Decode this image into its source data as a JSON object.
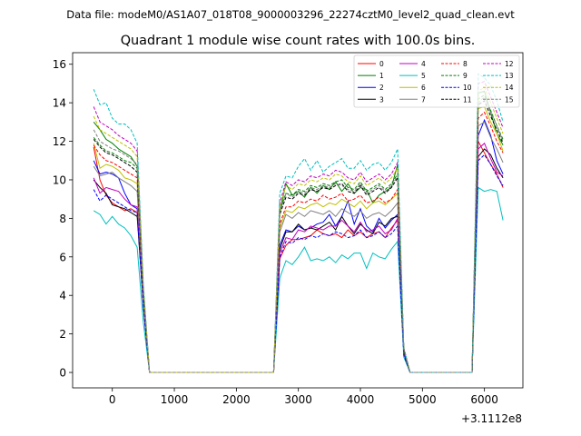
{
  "chart_data": {
    "type": "line",
    "suptitle": "Data file: modeM0/AS1A07_018T08_9000003296_22274cztM0_level2_quad_clean.evt",
    "title": "Quadrant 1 module wise count rates with 100.0s bins.",
    "xlabel": "",
    "ylabel": "",
    "x_offset_label": "+3.1112e8",
    "xlim": [
      -640,
      6620
    ],
    "ylim": [
      -0.8,
      16.6
    ],
    "xticks": [
      0,
      1000,
      2000,
      3000,
      4000,
      5000,
      6000
    ],
    "yticks": [
      0,
      2,
      4,
      6,
      8,
      10,
      12,
      14,
      16
    ],
    "x": [
      -300,
      -200,
      -100,
      0,
      100,
      200,
      300,
      400,
      500,
      600,
      700,
      800,
      900,
      1000,
      1100,
      1200,
      1300,
      1400,
      1500,
      1600,
      1700,
      1800,
      1900,
      2000,
      2100,
      2200,
      2300,
      2400,
      2500,
      2600,
      2700,
      2800,
      2900,
      3000,
      3100,
      3200,
      3300,
      3400,
      3500,
      3600,
      3700,
      3800,
      3900,
      4000,
      4100,
      4200,
      4300,
      4400,
      4500,
      4600,
      4700,
      4800,
      4900,
      5000,
      5100,
      5200,
      5300,
      5400,
      5500,
      5600,
      5700,
      5800,
      5900,
      6000,
      6100,
      6200,
      6300
    ],
    "legend": {
      "position": "top-right",
      "ncol": 4
    },
    "series": [
      {
        "name": "0",
        "color": "#ff0000",
        "dash": false,
        "values": [
          11.7,
          10.0,
          9.2,
          8.8,
          8.6,
          8.4,
          8.5,
          8.3,
          3.5,
          0,
          0,
          0,
          0,
          0,
          0,
          0,
          0,
          0,
          0,
          0,
          0,
          0,
          0,
          0,
          0,
          0,
          0,
          0,
          0,
          0,
          5.9,
          6.6,
          6.9,
          6.9,
          7.0,
          7.1,
          7.4,
          7.2,
          7.1,
          7.2,
          7.0,
          7.4,
          7.1,
          7.3,
          7.0,
          7.2,
          7.3,
          7.0,
          7.5,
          7.9,
          1.0,
          0,
          0,
          0,
          0,
          0,
          0,
          0,
          0,
          0,
          0,
          0,
          12.0,
          11.4,
          10.8,
          10.3,
          9.6
        ]
      },
      {
        "name": "1",
        "color": "#008000",
        "dash": false,
        "values": [
          13.0,
          12.6,
          12.1,
          11.9,
          11.6,
          11.4,
          11.2,
          10.7,
          4.2,
          0,
          0,
          0,
          0,
          0,
          0,
          0,
          0,
          0,
          0,
          0,
          0,
          0,
          0,
          0,
          0,
          0,
          0,
          0,
          0,
          0,
          8.3,
          9.8,
          9.2,
          9.4,
          9.1,
          9.6,
          9.3,
          9.7,
          9.5,
          9.9,
          9.4,
          9.8,
          9.3,
          9.6,
          9.5,
          8.8,
          9.2,
          9.4,
          9.6,
          10.8,
          1.2,
          0,
          0,
          0,
          0,
          0,
          0,
          0,
          0,
          0,
          0,
          0,
          14.5,
          14.6,
          13.5,
          12.4,
          11.8
        ]
      },
      {
        "name": "2",
        "color": "#0000ff",
        "dash": false,
        "values": [
          11.0,
          10.3,
          10.4,
          10.3,
          10.1,
          9.3,
          8.7,
          8.5,
          3.6,
          0,
          0,
          0,
          0,
          0,
          0,
          0,
          0,
          0,
          0,
          0,
          0,
          0,
          0,
          0,
          0,
          0,
          0,
          0,
          0,
          0,
          6.6,
          7.4,
          7.3,
          7.6,
          7.4,
          7.5,
          7.7,
          7.8,
          8.2,
          7.6,
          8.1,
          8.9,
          7.7,
          8.5,
          7.6,
          7.3,
          8.0,
          7.5,
          7.9,
          8.2,
          1.0,
          0,
          0,
          0,
          0,
          0,
          0,
          0,
          0,
          0,
          0,
          0,
          12.3,
          13.1,
          12.3,
          11.0,
          10.3
        ]
      },
      {
        "name": "3",
        "color": "#000000",
        "dash": false,
        "values": [
          10.0,
          9.6,
          9.3,
          8.7,
          8.6,
          8.5,
          8.3,
          8.1,
          3.5,
          0,
          0,
          0,
          0,
          0,
          0,
          0,
          0,
          0,
          0,
          0,
          0,
          0,
          0,
          0,
          0,
          0,
          0,
          0,
          0,
          0,
          6.4,
          7.3,
          7.3,
          7.7,
          7.4,
          7.5,
          7.4,
          7.6,
          7.8,
          7.4,
          8.1,
          7.6,
          7.2,
          7.7,
          7.4,
          7.2,
          7.8,
          7.6,
          8.0,
          8.1,
          1.0,
          0,
          0,
          0,
          0,
          0,
          0,
          0,
          0,
          0,
          0,
          0,
          11.2,
          11.6,
          11.3,
          10.6,
          10.1
        ]
      },
      {
        "name": "4",
        "color": "#c000c0",
        "dash": false,
        "values": [
          10.1,
          9.3,
          9.6,
          9.5,
          9.4,
          9.0,
          8.7,
          8.6,
          3.6,
          0,
          0,
          0,
          0,
          0,
          0,
          0,
          0,
          0,
          0,
          0,
          0,
          0,
          0,
          0,
          0,
          0,
          0,
          0,
          0,
          0,
          6.2,
          7.0,
          6.9,
          7.4,
          7.3,
          7.6,
          7.5,
          7.4,
          7.6,
          7.6,
          7.9,
          7.6,
          7.3,
          7.8,
          7.3,
          7.4,
          7.6,
          7.2,
          7.4,
          8.0,
          1.0,
          0,
          0,
          0,
          0,
          0,
          0,
          0,
          0,
          0,
          0,
          0,
          11.6,
          11.9,
          11.1,
          10.4,
          10.2
        ]
      },
      {
        "name": "5",
        "color": "#00bfbf",
        "dash": false,
        "values": [
          8.4,
          8.2,
          7.7,
          8.1,
          7.7,
          7.5,
          7.1,
          6.5,
          2.6,
          0,
          0,
          0,
          0,
          0,
          0,
          0,
          0,
          0,
          0,
          0,
          0,
          0,
          0,
          0,
          0,
          0,
          0,
          0,
          0,
          0,
          4.9,
          5.8,
          5.6,
          6.0,
          6.5,
          5.8,
          5.9,
          5.8,
          6.0,
          5.7,
          6.1,
          5.9,
          6.2,
          6.2,
          5.4,
          6.2,
          6.0,
          5.9,
          6.4,
          6.8,
          0.8,
          0,
          0,
          0,
          0,
          0,
          0,
          0,
          0,
          0,
          0,
          0,
          9.6,
          9.4,
          9.5,
          9.4,
          7.9
        ]
      },
      {
        "name": "6",
        "color": "#bfbf00",
        "dash": false,
        "values": [
          11.9,
          10.6,
          10.8,
          10.7,
          10.5,
          10.1,
          10.0,
          9.8,
          3.8,
          0,
          0,
          0,
          0,
          0,
          0,
          0,
          0,
          0,
          0,
          0,
          0,
          0,
          0,
          0,
          0,
          0,
          0,
          0,
          0,
          0,
          7.5,
          8.4,
          8.3,
          8.6,
          8.5,
          8.7,
          8.8,
          8.6,
          8.8,
          8.7,
          9.0,
          8.8,
          8.6,
          8.9,
          8.5,
          8.8,
          8.9,
          8.7,
          9.0,
          9.3,
          1.1,
          0,
          0,
          0,
          0,
          0,
          0,
          0,
          0,
          0,
          0,
          0,
          13.7,
          13.8,
          13.0,
          12.4,
          11.5
        ]
      },
      {
        "name": "7",
        "color": "#808080",
        "dash": false,
        "values": [
          10.7,
          10.2,
          10.3,
          10.4,
          10.1,
          9.9,
          9.7,
          9.4,
          3.7,
          0,
          0,
          0,
          0,
          0,
          0,
          0,
          0,
          0,
          0,
          0,
          0,
          0,
          0,
          0,
          0,
          0,
          0,
          0,
          0,
          0,
          7.3,
          8.2,
          8.0,
          8.3,
          8.1,
          8.4,
          8.3,
          8.2,
          8.4,
          8.1,
          8.5,
          8.3,
          8.1,
          8.4,
          8.0,
          8.2,
          8.3,
          8.1,
          8.4,
          8.8,
          1.0,
          0,
          0,
          0,
          0,
          0,
          0,
          0,
          0,
          0,
          0,
          0,
          12.8,
          13.0,
          12.2,
          11.6,
          10.9
        ]
      },
      {
        "name": "8",
        "color": "#ff0000",
        "dash": true,
        "values": [
          11.8,
          11.3,
          11.0,
          10.9,
          10.7,
          10.5,
          10.3,
          10.1,
          3.9,
          0,
          0,
          0,
          0,
          0,
          0,
          0,
          0,
          0,
          0,
          0,
          0,
          0,
          0,
          0,
          0,
          0,
          0,
          0,
          0,
          0,
          7.7,
          8.6,
          8.6,
          8.9,
          8.8,
          9.0,
          8.9,
          9.2,
          9.0,
          9.1,
          9.3,
          8.9,
          9.0,
          9.2,
          8.8,
          8.9,
          9.1,
          8.8,
          9.0,
          9.5,
          1.1,
          0,
          0,
          0,
          0,
          0,
          0,
          0,
          0,
          0,
          0,
          0,
          13.2,
          13.5,
          12.8,
          12.0,
          11.4
        ]
      },
      {
        "name": "9",
        "color": "#008000",
        "dash": true,
        "values": [
          12.2,
          11.8,
          11.5,
          11.4,
          11.2,
          11.0,
          10.9,
          10.6,
          4.1,
          0,
          0,
          0,
          0,
          0,
          0,
          0,
          0,
          0,
          0,
          0,
          0,
          0,
          0,
          0,
          0,
          0,
          0,
          0,
          0,
          0,
          8.4,
          9.3,
          9.2,
          9.5,
          9.4,
          9.7,
          9.6,
          9.8,
          9.7,
          9.9,
          10.0,
          9.6,
          9.5,
          9.9,
          9.4,
          9.6,
          9.8,
          9.5,
          9.8,
          10.3,
          1.2,
          0,
          0,
          0,
          0,
          0,
          0,
          0,
          0,
          0,
          0,
          0,
          14.2,
          14.4,
          13.6,
          12.8,
          12.1
        ]
      },
      {
        "name": "10",
        "color": "#0000ff",
        "dash": true,
        "values": [
          9.5,
          8.9,
          9.2,
          9.0,
          8.8,
          8.6,
          8.4,
          8.3,
          3.4,
          0,
          0,
          0,
          0,
          0,
          0,
          0,
          0,
          0,
          0,
          0,
          0,
          0,
          0,
          0,
          0,
          0,
          0,
          0,
          0,
          0,
          6.0,
          6.8,
          6.7,
          7.0,
          6.9,
          7.1,
          7.0,
          7.2,
          7.1,
          7.3,
          7.2,
          7.0,
          7.1,
          7.4,
          7.0,
          7.1,
          7.3,
          7.0,
          7.2,
          7.6,
          0.9,
          0,
          0,
          0,
          0,
          0,
          0,
          0,
          0,
          0,
          0,
          0,
          11.0,
          11.3,
          10.8,
          10.2,
          9.7
        ]
      },
      {
        "name": "11",
        "color": "#000000",
        "dash": true,
        "values": [
          12.1,
          11.7,
          11.4,
          11.3,
          11.1,
          10.9,
          10.7,
          10.4,
          4.0,
          0,
          0,
          0,
          0,
          0,
          0,
          0,
          0,
          0,
          0,
          0,
          0,
          0,
          0,
          0,
          0,
          0,
          0,
          0,
          0,
          0,
          8.2,
          9.1,
          9.0,
          9.3,
          9.2,
          9.5,
          9.4,
          9.6,
          9.5,
          9.7,
          9.8,
          9.4,
          9.3,
          9.7,
          9.2,
          9.4,
          9.6,
          9.3,
          9.6,
          10.1,
          1.1,
          0,
          0,
          0,
          0,
          0,
          0,
          0,
          0,
          0,
          0,
          0,
          13.9,
          14.1,
          13.3,
          12.6,
          11.9
        ]
      },
      {
        "name": "12",
        "color": "#c000c0",
        "dash": true,
        "values": [
          13.8,
          13.0,
          12.8,
          12.6,
          12.3,
          12.1,
          11.9,
          11.5,
          4.4,
          0,
          0,
          0,
          0,
          0,
          0,
          0,
          0,
          0,
          0,
          0,
          0,
          0,
          0,
          0,
          0,
          0,
          0,
          0,
          0,
          0,
          8.8,
          9.9,
          9.7,
          10.0,
          9.9,
          10.2,
          10.1,
          10.3,
          10.2,
          10.5,
          10.4,
          10.1,
          10.0,
          10.4,
          9.9,
          10.1,
          10.3,
          10.0,
          10.3,
          10.9,
          1.3,
          0,
          0,
          0,
          0,
          0,
          0,
          0,
          0,
          0,
          0,
          0,
          15.0,
          15.1,
          14.3,
          13.5,
          12.7
        ]
      },
      {
        "name": "13",
        "color": "#00bfbf",
        "dash": true,
        "values": [
          14.7,
          13.9,
          14.0,
          13.2,
          12.9,
          12.9,
          12.6,
          11.9,
          4.6,
          0,
          0,
          0,
          0,
          0,
          0,
          0,
          0,
          0,
          0,
          0,
          0,
          0,
          0,
          0,
          0,
          0,
          0,
          0,
          0,
          0,
          9.3,
          10.2,
          10.1,
          10.7,
          11.1,
          10.5,
          11.0,
          10.4,
          10.7,
          10.9,
          11.1,
          10.6,
          10.6,
          11.0,
          10.5,
          10.8,
          10.9,
          10.5,
          10.9,
          11.6,
          1.3,
          0,
          0,
          0,
          0,
          0,
          0,
          0,
          0,
          0,
          0,
          0,
          15.5,
          15.3,
          14.9,
          14.1,
          13.0
        ]
      },
      {
        "name": "14",
        "color": "#bfbf00",
        "dash": true,
        "values": [
          13.3,
          12.6,
          12.4,
          12.2,
          12.0,
          11.8,
          11.6,
          11.2,
          4.3,
          0,
          0,
          0,
          0,
          0,
          0,
          0,
          0,
          0,
          0,
          0,
          0,
          0,
          0,
          0,
          0,
          0,
          0,
          0,
          0,
          0,
          8.6,
          9.7,
          9.5,
          9.8,
          9.7,
          10.0,
          9.9,
          10.1,
          10.0,
          10.3,
          10.2,
          9.9,
          9.8,
          10.2,
          9.7,
          9.9,
          10.1,
          9.8,
          10.1,
          10.6,
          1.2,
          0,
          0,
          0,
          0,
          0,
          0,
          0,
          0,
          0,
          0,
          0,
          14.6,
          14.8,
          14.0,
          13.2,
          12.4
        ]
      },
      {
        "name": "15",
        "color": "#808080",
        "dash": true,
        "values": [
          12.6,
          12.0,
          11.8,
          11.6,
          11.5,
          11.3,
          11.1,
          10.8,
          4.2,
          0,
          0,
          0,
          0,
          0,
          0,
          0,
          0,
          0,
          0,
          0,
          0,
          0,
          0,
          0,
          0,
          0,
          0,
          0,
          0,
          0,
          8.3,
          9.3,
          9.1,
          9.4,
          9.3,
          9.6,
          9.5,
          9.7,
          9.6,
          9.8,
          9.7,
          9.5,
          9.4,
          9.8,
          9.3,
          9.5,
          9.7,
          9.4,
          9.7,
          10.2,
          1.2,
          0,
          0,
          0,
          0,
          0,
          0,
          0,
          0,
          0,
          0,
          0,
          14.0,
          14.3,
          13.5,
          12.8,
          12.0
        ]
      }
    ]
  }
}
